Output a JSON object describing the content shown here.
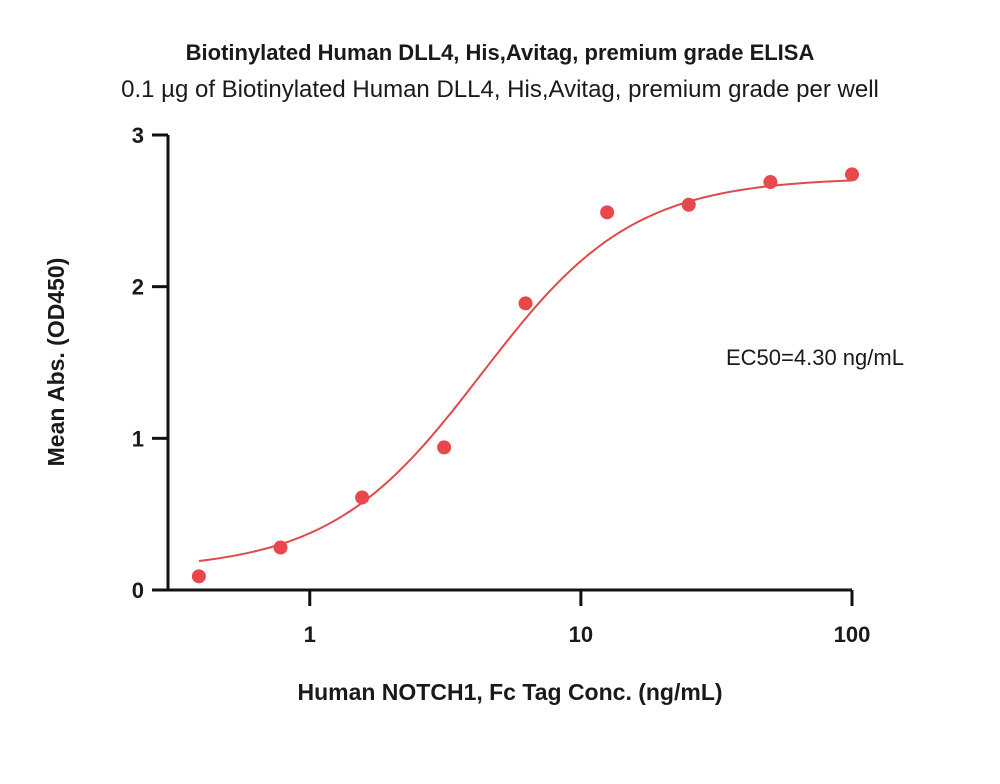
{
  "chart_data": {
    "type": "scatter",
    "title": "Biotinylated Human DLL4, His,Avitag, premium grade ELISA",
    "subtitle": "0.1 µg of Biotinylated Human DLL4, His,Avitag, premium grade per well",
    "xlabel": "Human NOTCH1, Fc Tag Conc. (ng/mL)",
    "ylabel": "Mean Abs. (OD450)",
    "x_scale": "log",
    "xlim": [
      0.3,
      100
    ],
    "ylim": [
      0,
      3
    ],
    "x_ticks": [
      {
        "value": 1,
        "label": "1"
      },
      {
        "value": 10,
        "label": "10"
      },
      {
        "value": 100,
        "label": "100"
      }
    ],
    "y_ticks": [
      {
        "value": 0,
        "label": "0"
      },
      {
        "value": 1,
        "label": "1"
      },
      {
        "value": 2,
        "label": "2"
      },
      {
        "value": 3,
        "label": "3"
      }
    ],
    "grid": false,
    "series": [
      {
        "color": "#e8474b",
        "x": [
          0.39,
          0.78,
          1.56,
          3.13,
          6.25,
          12.5,
          25,
          50,
          100
        ],
        "y": [
          0.09,
          0.28,
          0.61,
          0.94,
          1.89,
          2.49,
          2.54,
          2.69,
          2.74
        ]
      }
    ],
    "fit": {
      "type": "4PL",
      "bottom": 0.13,
      "top": 2.72,
      "ec50": 4.3,
      "hill": 1.55,
      "color": "#e04a4a"
    },
    "annotations": [
      {
        "text": "EC50=4.30 ng/mL"
      }
    ]
  }
}
